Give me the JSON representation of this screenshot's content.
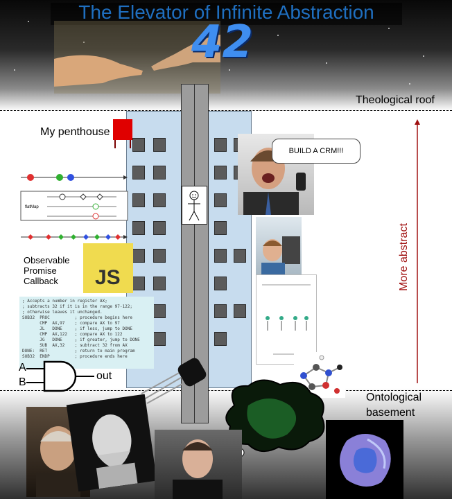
{
  "title": "The Elevator of Infinite Abstraction",
  "badge_42": "42",
  "labels": {
    "theological_roof": "Theological roof",
    "penthouse": "My penthouse",
    "more_abstract": "More abstract",
    "ontological_line1": "Ontological",
    "ontological_line2": "basement",
    "observable": "Observable",
    "promise": "Promise",
    "callback": "Callback",
    "and_a": "A",
    "and_b": "B",
    "and_out": "out",
    "js": "JS",
    "speech": "BUILD A CRM!!!",
    "flatmap": "flatMap"
  },
  "code_lines": [
    "; Accepts a number in register AX;",
    "; subtracts 32 if it is in the range 97-122;",
    "; otherwise leaves it unchanged.",
    "",
    "SUB32  PROC          ; procedure begins here",
    "       CMP  AX,97    ; compare AX to 97",
    "       JL   DONE     ; if less, jump to DONE",
    "       CMP  AX,122   ; compare AX to 122",
    "       JG   DONE     ; if greater, jump to DONE",
    "       SUB  AX,32    ; subtract 32 from AX",
    "DONE:  RET           ; return to main program",
    "SUB32  ENDP          ; procedure ends here"
  ],
  "colors": {
    "title": "#1f6fc0",
    "arrow": "#a01010",
    "flag": "#e00000",
    "building": "#c7dcee",
    "js_bg": "#f0db4f"
  }
}
